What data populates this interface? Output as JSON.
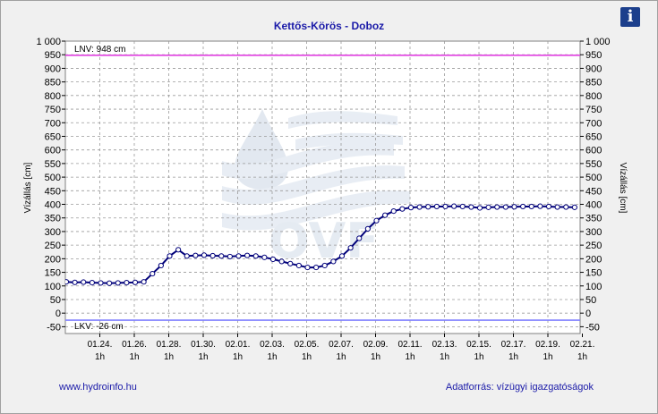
{
  "header": {
    "info_icon": "info-icon",
    "info_glyph": "i"
  },
  "footer": {
    "link": "www.hydroinfo.hu",
    "source": "Adatforrás: vízügyi igazgatóságok"
  },
  "chart_data": {
    "type": "line",
    "title": "Kettős-Körös - Doboz",
    "ylabel_left": "Vízállás [cm]",
    "ylabel_right": "Vízállás [cm]",
    "xlabel": "",
    "ylim": [
      -75,
      1000
    ],
    "yticks": [
      -50,
      0,
      50,
      100,
      150,
      200,
      250,
      300,
      350,
      400,
      450,
      500,
      550,
      600,
      650,
      700,
      750,
      800,
      850,
      900,
      950,
      1000
    ],
    "ytick_labels": [
      "-50",
      "0",
      "50",
      "100",
      "150",
      "200",
      "250",
      "300",
      "350",
      "400",
      "450",
      "500",
      "550",
      "600",
      "650",
      "700",
      "750",
      "800",
      "850",
      "900",
      "950",
      "1 000"
    ],
    "xticks": [
      "01.24.",
      "01.26.",
      "01.28.",
      "01.30.",
      "02.01.",
      "02.03.",
      "02.05.",
      "02.07.",
      "02.09.",
      "02.11.",
      "02.13.",
      "02.15.",
      "02.17.",
      "02.19.",
      "02.21."
    ],
    "xtick_sublabel": "1h",
    "xrange_days": [
      0,
      30
    ],
    "grid": true,
    "reference_lines": [
      {
        "label": "LNV: 948 cm",
        "value": 948,
        "color": "#e040e0"
      },
      {
        "label": "LKV: -26 cm",
        "value": -26,
        "color": "#8080ff"
      }
    ],
    "series": [
      {
        "color": "#00007a",
        "x": [
          0.0,
          0.5,
          1.0,
          1.5,
          2.0,
          2.5,
          3.0,
          3.5,
          4.0,
          4.5,
          5.0,
          5.5,
          6.0,
          6.5,
          7.0,
          7.5,
          8.0,
          8.5,
          9.0,
          9.5,
          10.0,
          10.5,
          11.0,
          11.5,
          12.0,
          12.5,
          13.0,
          13.5,
          14.0,
          14.5,
          15.0,
          15.5,
          16.0,
          16.5,
          17.0,
          17.5,
          18.0,
          18.5,
          19.0,
          19.5,
          20.0,
          20.5,
          21.0,
          21.5,
          22.0,
          22.5,
          23.0,
          23.5,
          24.0,
          24.5,
          25.0,
          25.5,
          26.0,
          26.5,
          27.0,
          27.5,
          28.0,
          28.5,
          29.0,
          29.5
        ],
        "y": [
          115,
          113,
          114,
          112,
          111,
          110,
          111,
          112,
          113,
          115,
          145,
          175,
          210,
          233,
          210,
          212,
          213,
          211,
          210,
          208,
          210,
          212,
          210,
          205,
          198,
          190,
          182,
          175,
          168,
          168,
          175,
          190,
          210,
          240,
          275,
          310,
          340,
          360,
          375,
          383,
          388,
          390,
          391,
          392,
          392,
          393,
          392,
          390,
          387,
          389,
          390,
          390,
          391,
          392,
          392,
          393,
          392,
          390,
          390,
          389
        ]
      }
    ]
  }
}
